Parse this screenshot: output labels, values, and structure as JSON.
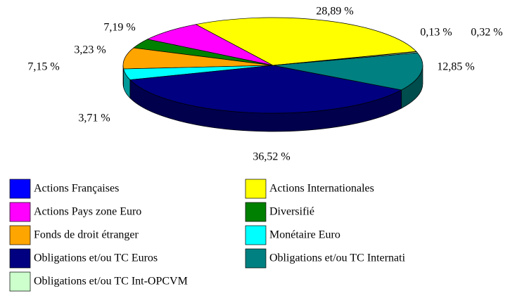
{
  "chart_data": {
    "type": "pie",
    "categories": [
      "Actions Françaises",
      "Actions Internationales",
      "Actions Pays zone Euro",
      "Diversifié",
      "Fonds de droit étranger",
      "Monétaire Euro",
      "Obligations et/ou TC Euros",
      "Obligations et/ou TC Internati",
      "Obligations et/ou TC Int-OPCVM"
    ],
    "values": [
      0.13,
      28.89,
      7.19,
      3.23,
      7.15,
      3.71,
      36.52,
      12.85,
      0.32
    ],
    "value_labels": [
      "0,13 %",
      "28,89 %",
      "7,19 %",
      "3,23 %",
      "7,15 %",
      "3,71 %",
      "36,52 %",
      "12,85 %",
      "0,32 %"
    ],
    "colors": [
      "#0000ff",
      "#ffff00",
      "#ff00ff",
      "#008000",
      "#ffa500",
      "#00ffff",
      "#000080",
      "#008080",
      "#ccffcc"
    ],
    "legend": "bottom"
  }
}
